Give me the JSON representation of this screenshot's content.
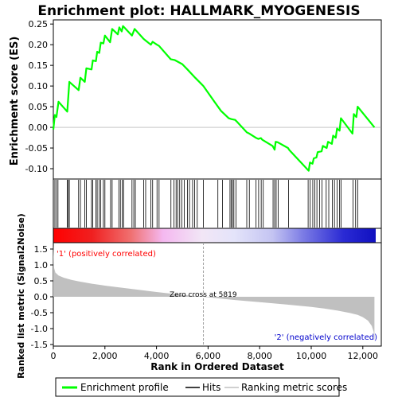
{
  "colors": {
    "enrichment_line": "#00ff00",
    "hits": "#000000",
    "metric_fill": "#c0c0c0",
    "positive_label": "#ff0000",
    "negative_label": "#0000cc",
    "zero_cross_line": "#a0a0a0"
  },
  "chart_data": {
    "type": "line",
    "title": "Enrichment plot: HALLMARK_MYOGENESIS",
    "xlabel": "Rank in Ordered Dataset",
    "xlim": [
      0,
      12500
    ],
    "x_ticks": [
      "0",
      "2,000",
      "4,000",
      "6,000",
      "8,000",
      "10,000",
      "12,000"
    ],
    "x_tick_values": [
      0,
      2000,
      4000,
      6000,
      8000,
      10000,
      12000
    ],
    "top_panel": {
      "ylabel": "Enrichment score (ES)",
      "ylim": [
        -0.125,
        0.26
      ],
      "y_ticks": [
        "0.25",
        "0.20",
        "0.15",
        "0.10",
        "0.05",
        "0.00",
        "-0.05",
        "-0.10"
      ],
      "y_tick_values": [
        0.25,
        0.2,
        0.15,
        0.1,
        0.05,
        0,
        -0.05,
        -0.1
      ],
      "series": [
        {
          "name": "Enrichment profile",
          "x": [
            0,
            60,
            120,
            200,
            540,
            620,
            980,
            1050,
            1220,
            1280,
            1480,
            1530,
            1650,
            1700,
            1780,
            1840,
            1940,
            2000,
            2200,
            2280,
            2500,
            2560,
            2650,
            2700,
            3050,
            3150,
            3500,
            3580,
            3780,
            3850,
            4020,
            4100,
            4550,
            4700,
            5000,
            5200,
            5500,
            5819,
            6200,
            6500,
            6800,
            6900,
            7050,
            7100,
            7500,
            7600,
            7850,
            7950,
            8050,
            8100,
            8500,
            8580,
            8620,
            8700,
            9100,
            9150,
            9900,
            9950,
            10050,
            10100,
            10200,
            10250,
            10400,
            10450,
            10600,
            10650,
            10800,
            10850,
            10950,
            11000,
            11100,
            11150,
            11600,
            11650,
            11750,
            11800,
            12450
          ],
          "y": [
            -0.005,
            0.03,
            0.025,
            0.062,
            0.038,
            0.11,
            0.09,
            0.12,
            0.11,
            0.143,
            0.14,
            0.162,
            0.16,
            0.183,
            0.18,
            0.205,
            0.203,
            0.222,
            0.206,
            0.238,
            0.225,
            0.242,
            0.232,
            0.245,
            0.222,
            0.238,
            0.214,
            0.21,
            0.2,
            0.207,
            0.2,
            0.197,
            0.165,
            0.163,
            0.153,
            0.14,
            0.12,
            0.1,
            0.066,
            0.04,
            0.022,
            0.02,
            0.018,
            0.015,
            -0.012,
            -0.015,
            -0.025,
            -0.028,
            -0.026,
            -0.03,
            -0.045,
            -0.054,
            -0.035,
            -0.036,
            -0.05,
            -0.055,
            -0.105,
            -0.085,
            -0.088,
            -0.075,
            -0.073,
            -0.06,
            -0.058,
            -0.045,
            -0.05,
            -0.035,
            -0.04,
            -0.02,
            -0.025,
            -0.003,
            -0.008,
            0.022,
            -0.015,
            0.032,
            0.025,
            0.05,
            0.0
          ]
        }
      ]
    },
    "hits_panel": {
      "series_name": "Hits",
      "hit_ranks": [
        60,
        120,
        180,
        540,
        580,
        620,
        980,
        1050,
        1220,
        1280,
        1480,
        1530,
        1650,
        1700,
        1780,
        1840,
        1940,
        2000,
        2220,
        2280,
        2540,
        2600,
        2680,
        2720,
        3050,
        3120,
        3180,
        3500,
        3580,
        3780,
        3850,
        4020,
        4100,
        4560,
        4680,
        4760,
        4820,
        4900,
        4980,
        5080,
        5200,
        5280,
        5400,
        5480,
        5580,
        5820,
        6380,
        6560,
        6850,
        6900,
        6950,
        7000,
        7080,
        7500,
        7600,
        7860,
        7960,
        8060,
        8140,
        8520,
        8580,
        8640,
        8720,
        9120,
        9880,
        9960,
        10060,
        10140,
        10220,
        10320,
        10420,
        10580,
        10680,
        10820,
        10900,
        11000,
        11100,
        11160,
        11620,
        11720,
        11800
      ]
    },
    "bottom_panel": {
      "ylabel": "Ranked list metric (Signal2Noise)",
      "series_name": "Ranking metric scores",
      "ylim": [
        -1.55,
        1.7
      ],
      "y_ticks": [
        "1.5",
        "1.0",
        "0.5",
        "0.0",
        "-0.5",
        "-1.0",
        "-1.5"
      ],
      "y_tick_values": [
        1.5,
        1.0,
        0.5,
        0.0,
        -0.5,
        -1.0,
        -1.5
      ],
      "x": [
        0,
        30,
        80,
        200,
        400,
        700,
        1000,
        1500,
        2000,
        3000,
        4000,
        5000,
        5819,
        7000,
        8000,
        9000,
        10000,
        10500,
        11000,
        11500,
        11800,
        12000,
        12200,
        12350,
        12420,
        12450
      ],
      "values": [
        1.62,
        0.9,
        0.76,
        0.67,
        0.6,
        0.53,
        0.48,
        0.41,
        0.35,
        0.25,
        0.15,
        0.06,
        0.0,
        -0.1,
        -0.17,
        -0.24,
        -0.32,
        -0.37,
        -0.43,
        -0.51,
        -0.57,
        -0.64,
        -0.75,
        -0.92,
        -1.1,
        -1.42
      ],
      "zero_cross_label": "Zero cross at 5819",
      "zero_cross_rank": 5819,
      "positive_label": "'1' (positively correlated)",
      "negative_label": "'2' (negatively correlated)"
    },
    "legend": {
      "placement": "bottom",
      "entries": [
        "Enrichment profile",
        "Hits",
        "Ranking metric scores"
      ]
    }
  }
}
